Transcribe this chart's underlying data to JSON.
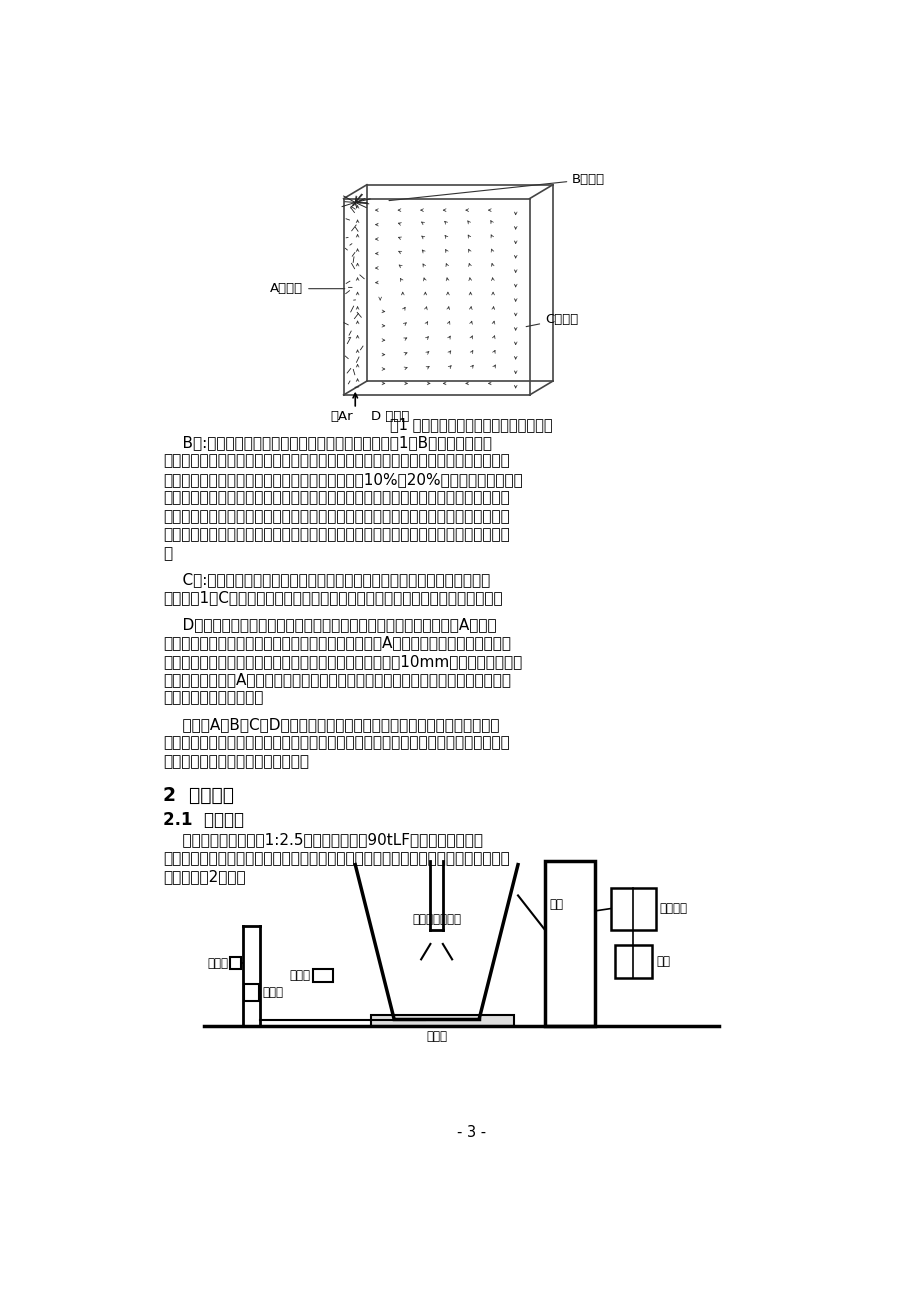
{
  "bg_color": "#ffffff",
  "text_color": "#000000",
  "fig1_caption": "图1 底吹氩气钢包内形成的循环流示意图",
  "label_A": "A上升流",
  "label_B": "B水平流",
  "label_C": "C下降流",
  "label_D": "D 抽引流",
  "label_blow": "吹Ar",
  "section2": "2  实验方案",
  "section21": "2.1  实验方法",
  "para_B": "    B区:钢包上部钢液和炉渣沿着水平方向流动区，如图1中B所示。气液两相流会迫使炉渣和钢液以放射型向四周水平流动。水平流动的厚度是指渣层厚度和与渣层接触的钢液侧的一定厚度之和，一般为钢液深度的10%～20%，水平流动速度大小和厚度主要取决于钢包底吹氩气的流量。炉渣层和与炉渣接触的钢液侧一定厚度的水平流动速度都不一样，即钢液侧水平流动速度大于炉渣层。由于二者之间水平流动速度不一样而产生相对运动，为渣钢界面不断进行表面更新，提高冶金反应效果起着积极作用。",
  "para_C": "    C区:下降流区。炉渣和钢液的水平流动至包壁受阻后，转向沿着包壁向下流动，如图1中C所示。由于钢液沿着包壁向下流动，为喂丝位置确定提供操作场所。",
  "para_D": "    D区：抽引流区。下降流沿着包壁下降到不同深度的钢液和炉渣滴在A区气液两相流的抽引作用下，由四周不同深度沿着水平方向向A区中心流动。从模拟实验录像观察可知，当底吹气体流量增加到一定程度时，被卷入的约10mm以下的小渣滴沿着包底水平方向流向A区。渣滴直径小，分散程度大，在钢液里停留时间长，为深脱硫创造了良好的动力学条件。",
  "para_summary": "    以上由A、B、C、D流动区构成钢包底吹氩气的整个循环流。钢液或者渣滴在钢包内钢液循环一周所需要的时间长短，决定钢包内冶金反应速度的快慢；同时也对去除大颗粒夹杂物有着重要的作用。",
  "para_21": "    根据相似原理，采用1:2.5几何相似比模拟90tLF精炼钢包。为了便于观察录像，用有机玻璃制作成钢包模型。采用水模拟钢液，氮气模拟氩气，其模拟实验装置如图2所示。",
  "page_num": "- 3 -"
}
